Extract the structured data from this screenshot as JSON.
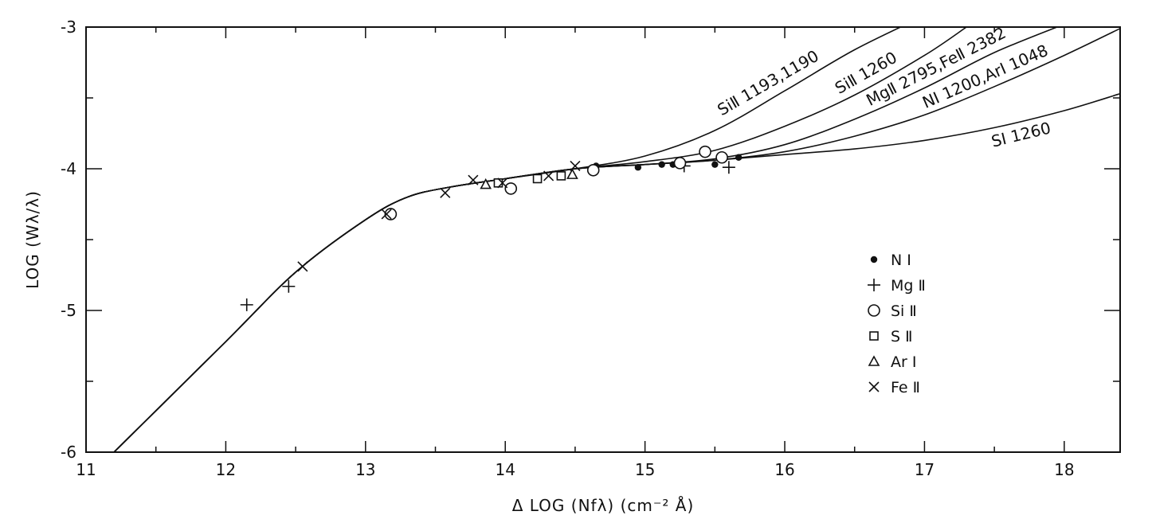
{
  "chart_data": {
    "type": "scatter",
    "xlabel": "Δ LOG (Nfλ)    (cm⁻² Å)",
    "ylabel": "LOG (Wλ/λ)",
    "xlim": [
      11,
      18.4
    ],
    "ylim": [
      -6,
      -3
    ],
    "xticks": [
      11,
      12,
      13,
      14,
      15,
      16,
      17,
      18
    ],
    "xtick_labels": [
      "11",
      "12",
      "13",
      "14",
      "15",
      "16",
      "17",
      "18"
    ],
    "yticks": [
      -6,
      -5,
      -4,
      -3
    ],
    "ytick_labels": [
      "-6",
      "-5",
      "-4",
      "-3"
    ],
    "grid": false,
    "legend_position": "right",
    "curves": [
      {
        "name": "SiII 1193,1190",
        "label": "SiⅡ 1193,1190",
        "x": [
          11.2,
          12.0,
          12.5,
          13.0,
          13.3,
          13.6,
          14.0,
          14.5,
          15.0,
          15.5,
          16.0,
          16.5,
          17.0
        ],
        "y": [
          -6.0,
          -5.22,
          -4.73,
          -4.36,
          -4.2,
          -4.13,
          -4.07,
          -4.0,
          -3.91,
          -3.73,
          -3.45,
          -3.16,
          -2.92
        ]
      },
      {
        "name": "SiII 1260",
        "label": "SiⅡ 1260",
        "x": [
          11.2,
          12.0,
          12.5,
          13.0,
          13.3,
          13.6,
          14.0,
          14.5,
          15.0,
          15.5,
          16.0,
          16.5,
          17.0,
          17.3
        ],
        "y": [
          -6.0,
          -5.22,
          -4.73,
          -4.36,
          -4.2,
          -4.13,
          -4.07,
          -4.0,
          -3.95,
          -3.87,
          -3.7,
          -3.48,
          -3.2,
          -3.0
        ]
      },
      {
        "name": "MgII 2795, FeII 2382",
        "label": "MgⅡ 2795,FeⅡ 2382",
        "x": [
          11.2,
          12.0,
          12.5,
          13.0,
          13.3,
          13.6,
          14.0,
          14.5,
          15.0,
          15.5,
          16.0,
          16.5,
          17.0,
          17.5,
          18.0
        ],
        "y": [
          -6.0,
          -5.22,
          -4.73,
          -4.36,
          -4.2,
          -4.13,
          -4.07,
          -4.0,
          -3.97,
          -3.93,
          -3.83,
          -3.65,
          -3.43,
          -3.18,
          -2.98
        ]
      },
      {
        "name": "NI 1200, ArI 1048",
        "label": "NⅠ 1200,ArⅠ 1048",
        "x": [
          11.2,
          12.0,
          12.5,
          13.0,
          13.3,
          13.6,
          14.0,
          14.5,
          15.0,
          15.5,
          16.0,
          16.5,
          17.0,
          17.5,
          18.0,
          18.4
        ],
        "y": [
          -6.0,
          -5.22,
          -4.73,
          -4.36,
          -4.2,
          -4.13,
          -4.07,
          -4.0,
          -3.97,
          -3.94,
          -3.88,
          -3.77,
          -3.62,
          -3.42,
          -3.2,
          -3.01
        ]
      },
      {
        "name": "SI 1260",
        "label": "SⅠ 1260",
        "x": [
          11.2,
          12.0,
          12.5,
          13.0,
          13.3,
          13.6,
          14.0,
          14.5,
          15.0,
          15.5,
          16.0,
          16.5,
          17.0,
          17.5,
          18.0,
          18.4
        ],
        "y": [
          -6.0,
          -5.22,
          -4.73,
          -4.36,
          -4.2,
          -4.13,
          -4.07,
          -4.0,
          -3.97,
          -3.94,
          -3.9,
          -3.86,
          -3.8,
          -3.71,
          -3.59,
          -3.47
        ]
      }
    ],
    "series": [
      {
        "name": "N I",
        "label": "N I",
        "marker": "filled-circle",
        "x": [
          14.65,
          14.95,
          15.12,
          15.2,
          15.5,
          15.67
        ],
        "y": [
          -3.98,
          -3.99,
          -3.97,
          -3.97,
          -3.97,
          -3.92
        ]
      },
      {
        "name": "Mg II",
        "label": "Mg Ⅱ",
        "marker": "plus",
        "x": [
          12.15,
          12.45,
          15.28,
          15.6
        ],
        "y": [
          -4.96,
          -4.83,
          -3.98,
          -3.99
        ]
      },
      {
        "name": "Si II",
        "label": "Si Ⅱ",
        "marker": "open-circle",
        "x": [
          13.18,
          14.04,
          14.63,
          15.25,
          15.43,
          15.55
        ],
        "y": [
          -4.32,
          -4.14,
          -4.01,
          -3.96,
          -3.88,
          -3.92
        ]
      },
      {
        "name": "S II",
        "label": "S Ⅱ",
        "marker": "open-square",
        "x": [
          13.95,
          14.23,
          14.4
        ],
        "y": [
          -4.1,
          -4.07,
          -4.05
        ]
      },
      {
        "name": "Ar I",
        "label": "Ar I",
        "marker": "open-triangle",
        "x": [
          13.86,
          14.48
        ],
        "y": [
          -4.11,
          -4.04
        ]
      },
      {
        "name": "Fe II",
        "label": "Fe Ⅱ",
        "marker": "cross",
        "x": [
          12.55,
          13.15,
          13.57,
          13.77,
          13.98,
          14.31,
          14.5
        ],
        "y": [
          -4.69,
          -4.32,
          -4.17,
          -4.08,
          -4.1,
          -4.05,
          -3.98
        ]
      }
    ]
  }
}
